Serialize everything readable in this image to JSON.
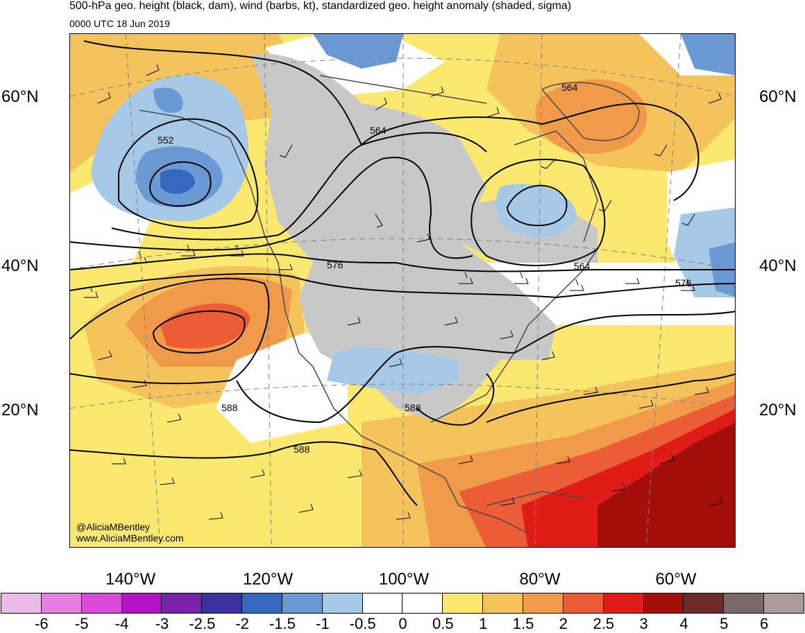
{
  "title": "500-hPa geo. height (black, dam), wind (barbs, kt), standardized geo. height anomaly (shaded, sigma)",
  "subtitle": "0000 UTC 18 Jun 2019",
  "credits": {
    "twitter": "@AliciaMBentley",
    "website": "www.AliciaMBentley.com"
  },
  "lat_labels_left": [
    "60°N",
    "40°N",
    "20°N"
  ],
  "lat_labels_right": [
    "60°N",
    "40°N",
    "20°N"
  ],
  "lon_labels": [
    "140°W",
    "120°W",
    "100°W",
    "80°W",
    "60°W"
  ],
  "contour_labels": [
    "552",
    "564",
    "564",
    "564",
    "576",
    "576",
    "588",
    "588",
    "588"
  ],
  "colorbar": {
    "ticks": [
      "-6",
      "-5",
      "-4",
      "-3",
      "-2.5",
      "-2",
      "-1.5",
      "-1",
      "-0.5",
      "0",
      "0.5",
      "1",
      "1.5",
      "2",
      "2.5",
      "3",
      "4",
      "5",
      "6"
    ],
    "colors": [
      "#ebbde6",
      "#e57fe2",
      "#d84ad9",
      "#b414c8",
      "#7822ad",
      "#3a32a3",
      "#3468c1",
      "#6b99d3",
      "#a7c9e8",
      "#ffffff",
      "#ffffff",
      "#fbe96f",
      "#f5c35c",
      "#f09a4a",
      "#ec5d36",
      "#e01c16",
      "#a50f0b",
      "#6e2a28",
      "#7a6969",
      "#aa9a9a"
    ]
  },
  "shading_colors": {
    "land_mask": "#c8c8c8",
    "pos_05": "#fbe96f",
    "pos_1": "#f5c35c",
    "pos_15": "#f09a4a",
    "pos_2": "#ec5d36",
    "pos_25": "#e01c16",
    "pos_3": "#a50f0b",
    "neg_05": "#a7c9e8",
    "neg_1": "#6b99d3",
    "neg_15": "#3468c1"
  }
}
